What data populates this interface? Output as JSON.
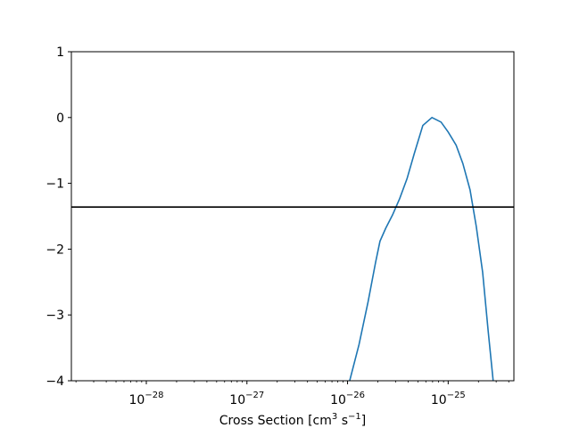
{
  "chart_data": {
    "type": "line",
    "title": "",
    "xlabel_main": "Cross Section [cm",
    "xlabel_sup1": "3",
    "xlabel_mid": " s",
    "xlabel_sup2": "−1",
    "xlabel_end": "]",
    "ylabel": "",
    "xscale": "log",
    "xlim": [
      1.8e-29,
      4.5e-25
    ],
    "ylim": [
      -4,
      1
    ],
    "grid": false,
    "x_major_ticks": [
      {
        "value": 1e-28,
        "base": "10",
        "exp": "−28"
      },
      {
        "value": 1e-27,
        "base": "10",
        "exp": "−27"
      },
      {
        "value": 1e-26,
        "base": "10",
        "exp": "−26"
      },
      {
        "value": 1e-25,
        "base": "10",
        "exp": "−25"
      }
    ],
    "y_ticks": [
      {
        "value": 1,
        "label": "1"
      },
      {
        "value": 0,
        "label": "0"
      },
      {
        "value": -1,
        "label": "−1"
      },
      {
        "value": -2,
        "label": "−2"
      },
      {
        "value": -3,
        "label": "−3"
      },
      {
        "value": -4,
        "label": "−4"
      }
    ],
    "hline": {
      "y": -1.36,
      "color": "#000000"
    },
    "series": [
      {
        "color": "#1f77b4",
        "x": [
          1.05e-26,
          1.3e-26,
          1.6e-26,
          1.9e-26,
          2.1e-26,
          2.4e-26,
          2.8e-26,
          3.3e-26,
          3.9e-26,
          4.6e-26,
          5.6e-26,
          6.9e-26,
          8.5e-26,
          1e-25,
          1.2e-25,
          1.4e-25,
          1.65e-25,
          1.9e-25,
          2.2e-25,
          2.5e-25,
          2.8e-25
        ],
        "y": [
          -4.0,
          -3.45,
          -2.8,
          -2.2,
          -1.88,
          -1.68,
          -1.48,
          -1.23,
          -0.93,
          -0.55,
          -0.12,
          0.0,
          -0.07,
          -0.22,
          -0.42,
          -0.7,
          -1.1,
          -1.65,
          -2.35,
          -3.25,
          -4.0
        ]
      }
    ]
  }
}
